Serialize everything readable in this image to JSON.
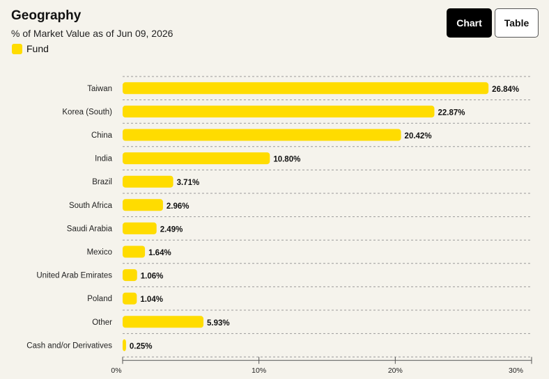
{
  "header": {
    "title": "Geography",
    "subtitle": "% of Market Value as of Jun 09, 2026",
    "chart_button": "Chart",
    "table_button": "Table"
  },
  "legend": {
    "label": "Fund",
    "color": "#ffdc00"
  },
  "chart_data": {
    "type": "bar",
    "orientation": "horizontal",
    "categories": [
      "Taiwan",
      "Korea (South)",
      "China",
      "India",
      "Brazil",
      "South Africa",
      "Saudi Arabia",
      "Mexico",
      "United Arab Emirates",
      "Poland",
      "Other",
      "Cash and/or Derivatives"
    ],
    "series": [
      {
        "name": "Fund",
        "values": [
          26.84,
          22.87,
          20.42,
          10.8,
          3.71,
          2.96,
          2.49,
          1.64,
          1.06,
          1.04,
          5.93,
          0.25
        ]
      }
    ],
    "value_labels": [
      "26.84%",
      "22.87%",
      "20.42%",
      "10.80%",
      "3.71%",
      "2.96%",
      "2.49%",
      "1.64%",
      "1.06%",
      "1.04%",
      "5.93%",
      "0.25%"
    ],
    "xlim": [
      0,
      30
    ],
    "x_ticks": [
      0,
      10,
      20,
      30
    ],
    "x_tick_labels": [
      "0%",
      "10%",
      "20%",
      "30%"
    ],
    "grid": "dashed horizontal separators",
    "legend_position": "top-left",
    "bar_color": "#ffdc00"
  }
}
